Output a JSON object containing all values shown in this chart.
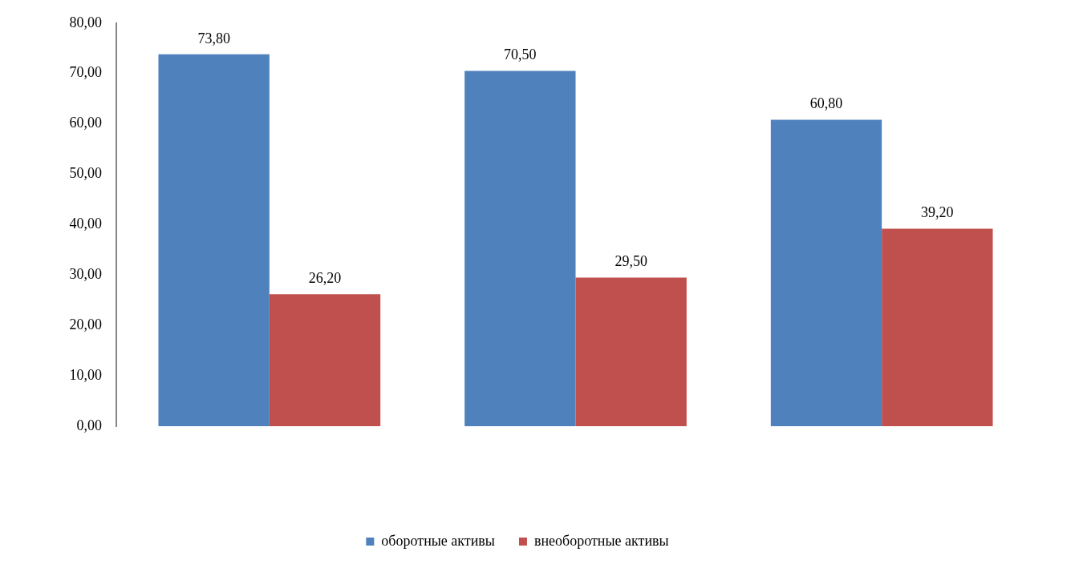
{
  "chart_data": {
    "type": "bar",
    "categories": [
      null,
      null,
      null
    ],
    "series": [
      {
        "name": "оборотные активы",
        "color": "#4f81bd",
        "values": [
          73.8,
          70.5,
          60.8
        ],
        "value_labels": [
          "73,80",
          "70,50",
          "60,80"
        ]
      },
      {
        "name": "внеоборотные активы",
        "color": "#c0504d",
        "values": [
          26.2,
          29.5,
          39.2
        ],
        "value_labels": [
          "26,20",
          "29,50",
          "39,20"
        ]
      }
    ],
    "ylim": [
      0,
      80
    ],
    "yticks": [
      {
        "value": 0,
        "label": "0,00"
      },
      {
        "value": 10,
        "label": "10,00"
      },
      {
        "value": 20,
        "label": "20,00"
      },
      {
        "value": 30,
        "label": "30,00"
      },
      {
        "value": 40,
        "label": "40,00"
      },
      {
        "value": 50,
        "label": "50,00"
      },
      {
        "value": 60,
        "label": "60,00"
      },
      {
        "value": 70,
        "label": "70,00"
      },
      {
        "value": 80,
        "label": "80,00"
      }
    ],
    "grid": false,
    "legend": "bottom"
  }
}
